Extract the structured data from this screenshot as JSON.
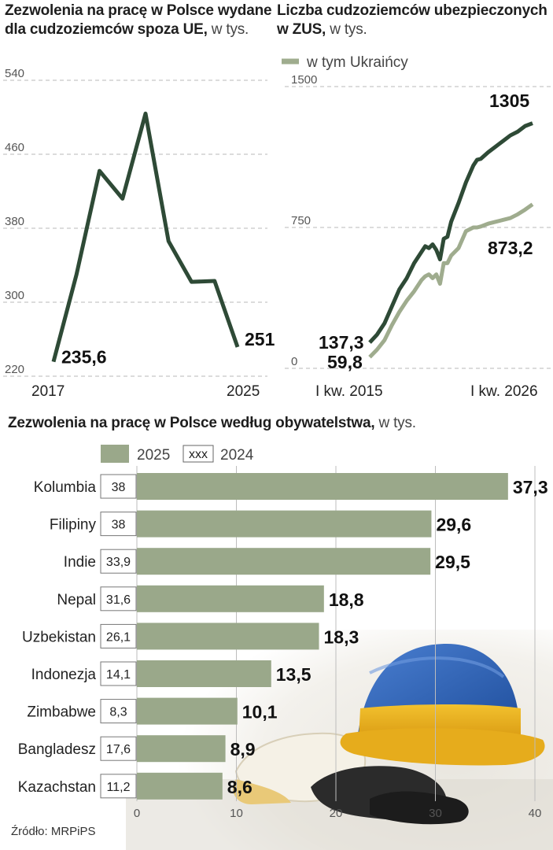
{
  "titles": {
    "chart1_title": "Zezwolenia na pracę w Polsce wydane dla cudzoziemców spoza UE,",
    "chart1_unit": "w tys.",
    "chart2_title": "Liczba cudzoziemców ubezpieczonych w ZUS,",
    "chart2_unit": "w tys.",
    "chart3_title": "Zezwolenia na pracę w Polsce według obywatelstwa,",
    "chart3_unit": "w tys."
  },
  "source": "Źródło: MRPiPS",
  "colors": {
    "dark_green": "#2e4a36",
    "light_green": "#9fac8e",
    "bar_green": "#9aa88a",
    "grid": "#b8b8b8"
  },
  "chart_data": [
    {
      "type": "line",
      "title": "Zezwolenia na pracę w Polsce wydane dla cudzoziemców spoza UE, w tys.",
      "x": [
        2017,
        2018,
        2019,
        2020,
        2021,
        2022,
        2023,
        2024,
        2025
      ],
      "series": [
        {
          "values": [
            235.6,
            330,
            442,
            412,
            504,
            366,
            322,
            323,
            251.5
          ]
        }
      ],
      "ylim": [
        220,
        540
      ],
      "yticks": [
        540,
        460,
        380,
        300,
        220
      ],
      "xtick_labels": [
        "2017",
        "2025"
      ],
      "data_labels": {
        "first": "235,6",
        "last": "251,5"
      },
      "grid": "horizontal dashed"
    },
    {
      "type": "line",
      "title": "Liczba cudzoziemców ubezpieczonych w ZUS, w tys.",
      "legend": "w tym Ukraińcy",
      "ylim": [
        0,
        1500
      ],
      "yticks": [
        1500,
        750,
        0
      ],
      "xtick_labels": [
        "I kw. 2015",
        "I kw. 2026"
      ],
      "x": [
        2015.0,
        2015.5,
        2016.0,
        2016.5,
        2017.0,
        2017.5,
        2018.0,
        2018.5,
        2018.75,
        2019.0,
        2019.25,
        2019.5,
        2019.75,
        2020.0,
        2020.25,
        2020.5,
        2021.0,
        2021.5,
        2022.0,
        2022.25,
        2022.5,
        2023.0,
        2023.5,
        2024.0,
        2024.5,
        2025.0,
        2025.5,
        2026.0
      ],
      "series": [
        {
          "name": "Razem",
          "values": [
            137.3,
            180,
            240,
            330,
            420,
            480,
            560,
            620,
            650,
            640,
            660,
            630,
            580,
            690,
            700,
            780,
            880,
            990,
            1080,
            1110,
            1115,
            1150,
            1180,
            1210,
            1240,
            1260,
            1290,
            1305
          ]
        },
        {
          "name": "w tym Ukraińcy",
          "values": [
            59.8,
            100,
            150,
            230,
            300,
            360,
            410,
            470,
            490,
            500,
            480,
            500,
            450,
            560,
            560,
            600,
            640,
            730,
            750,
            750,
            755,
            770,
            780,
            790,
            800,
            820,
            845,
            873.2
          ]
        }
      ],
      "data_labels": {
        "total_first": "137,3",
        "total_last": "1305",
        "ua_first": "59,8",
        "ua_last": "873,2"
      },
      "grid": "horizontal dashed"
    },
    {
      "type": "bar",
      "orientation": "horizontal",
      "title": "Zezwolenia na pracę w Polsce według obywatelstwa, w tys.",
      "legend": {
        "swatch_label": "2025",
        "box_sample": "xxx",
        "box_label": "2024"
      },
      "categories": [
        "Kolumbia",
        "Filipiny",
        "Indie",
        "Nepal",
        "Uzbekistan",
        "Indonezja",
        "Zimbabwe",
        "Bangladesz",
        "Kazachstan"
      ],
      "series": [
        {
          "name": "2025",
          "values": [
            37.3,
            29.6,
            29.5,
            18.8,
            18.3,
            13.5,
            10.1,
            8.9,
            8.6
          ],
          "labels": [
            "37,3",
            "29,6",
            "29,5",
            "18,8",
            "18,3",
            "13,5",
            "10,1",
            "8,9",
            "8,6"
          ]
        },
        {
          "name": "2024",
          "values": [
            38,
            38,
            33.9,
            31.6,
            26.1,
            14.1,
            8.3,
            17.6,
            11.2
          ],
          "labels": [
            "38",
            "38",
            "33,9",
            "31,6",
            "26,1",
            "14,1",
            "8,3",
            "17,6",
            "11,2"
          ]
        }
      ],
      "xlim": [
        0,
        40
      ],
      "xticks": [
        0,
        10,
        20,
        30,
        40
      ],
      "grid": "vertical solid"
    }
  ]
}
